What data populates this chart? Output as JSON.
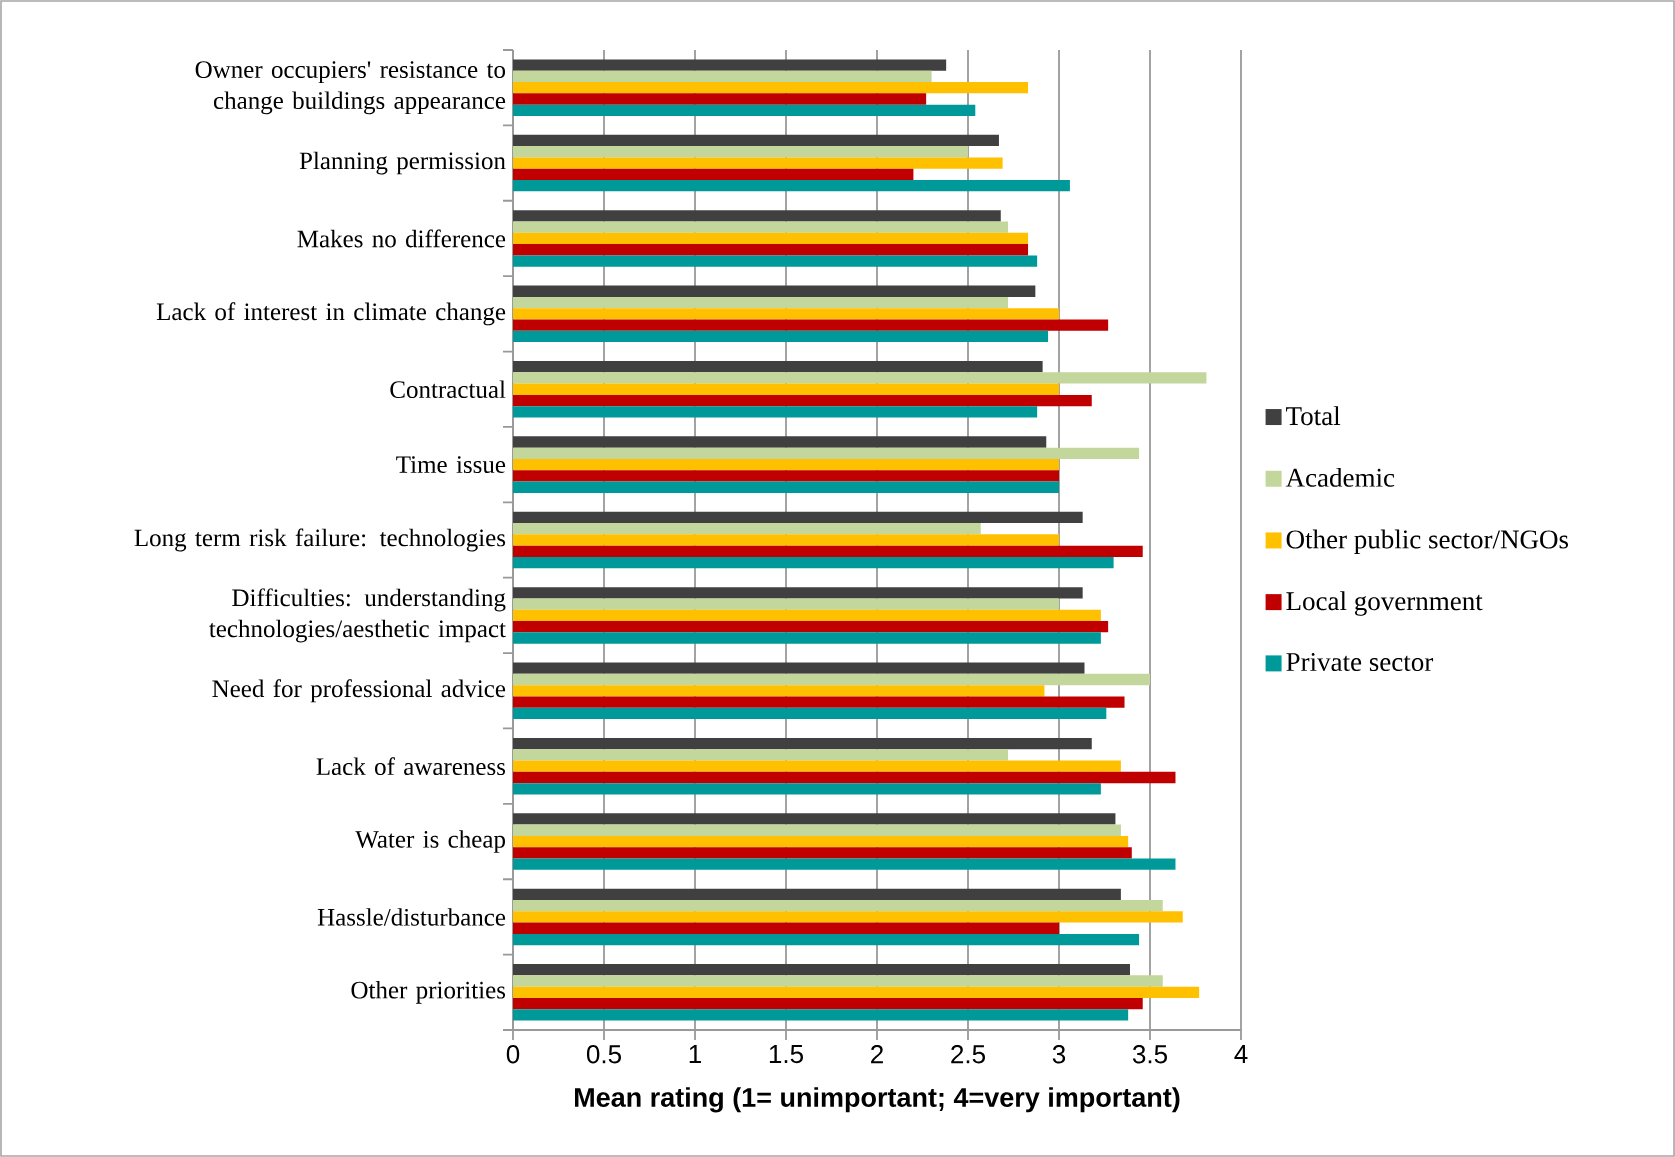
{
  "chart_data": {
    "type": "bar",
    "orientation": "horizontal",
    "xlabel": "Mean rating (1= unimportant; 4=very important)",
    "categories": [
      "Owner occupiers' resistance to change buildings appearance",
      "Planning permission",
      "Makes no difference",
      "Lack of interest in climate change",
      "Contractual",
      "Time issue",
      "Long term risk failure: technologies",
      "Difficulties: understanding technologies/aesthetic impact",
      "Need for professional advice",
      "Lack of awareness",
      "Water is cheap",
      "Hassle/disturbance",
      "Other priorities"
    ],
    "series": [
      {
        "name": "Total",
        "color": "#404040",
        "values": [
          2.38,
          2.67,
          2.68,
          2.87,
          2.91,
          2.93,
          3.13,
          3.13,
          3.14,
          3.18,
          3.31,
          3.34,
          3.39
        ]
      },
      {
        "name": "Academic",
        "color": "#c3d69b",
        "values": [
          2.3,
          2.5,
          2.72,
          2.72,
          3.81,
          3.44,
          2.57,
          3.0,
          3.5,
          2.72,
          3.34,
          3.57,
          3.57
        ]
      },
      {
        "name": "Other public sector/NGOs",
        "color": "#ffc000",
        "values": [
          2.83,
          2.69,
          2.83,
          3.0,
          3.0,
          3.0,
          3.0,
          3.23,
          2.92,
          3.34,
          3.38,
          3.68,
          3.77
        ]
      },
      {
        "name": "Local government",
        "color": "#c00000",
        "values": [
          2.27,
          2.2,
          2.83,
          3.27,
          3.18,
          3.0,
          3.46,
          3.27,
          3.36,
          3.64,
          3.4,
          3.0,
          3.46
        ]
      },
      {
        "name": "Private sector",
        "color": "#009999",
        "values": [
          2.54,
          3.06,
          2.88,
          2.94,
          2.88,
          3.0,
          3.3,
          3.23,
          3.26,
          3.23,
          3.64,
          3.44,
          3.38
        ]
      }
    ],
    "xlim": [
      0,
      4
    ],
    "xticks": [
      0,
      0.5,
      1,
      1.5,
      2,
      2.5,
      3,
      3.5,
      4
    ],
    "grid": "x",
    "legend": "right"
  }
}
